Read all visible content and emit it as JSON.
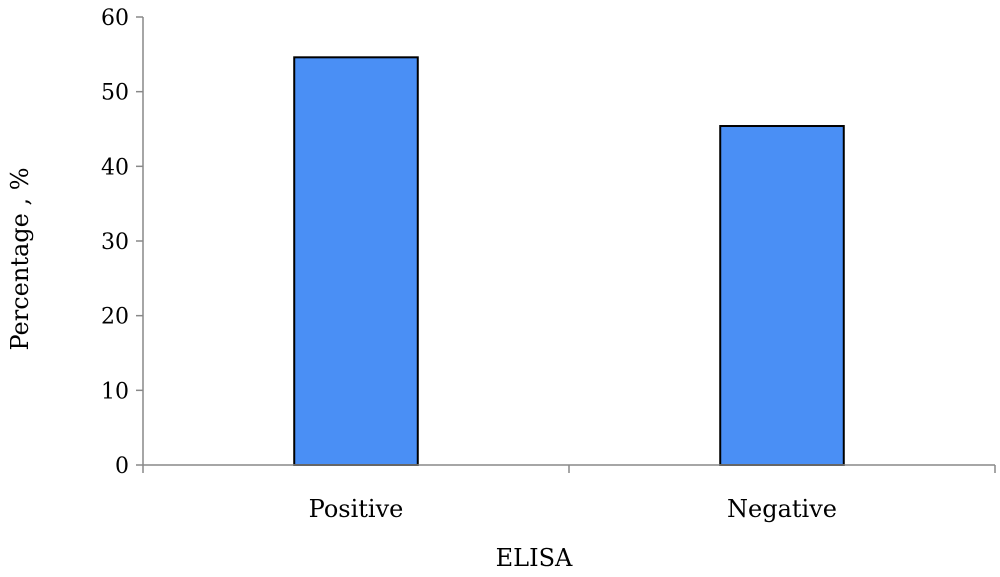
{
  "chart_data": {
    "type": "bar",
    "categories": [
      "Positive",
      "Negative"
    ],
    "values": [
      54.6,
      45.4
    ],
    "xlabel": "ELISA",
    "ylabel": "Percentage , %",
    "ylim": [
      0,
      60
    ],
    "yticks": [
      "0",
      "10",
      "20",
      "30",
      "40",
      "50",
      "60"
    ],
    "grid": false,
    "legend": "none",
    "bar_color": "#4a8ff5",
    "bar_edge_color": "#000000"
  }
}
